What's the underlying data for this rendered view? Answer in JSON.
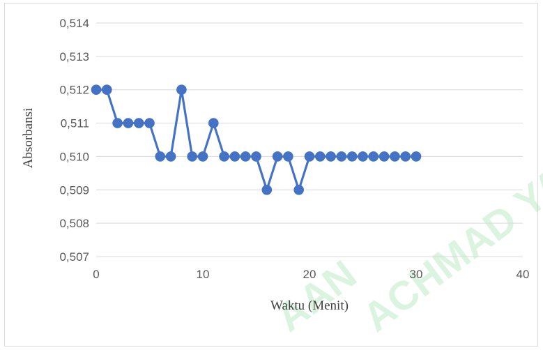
{
  "chart_data": {
    "type": "line",
    "title": "",
    "xlabel": "Waktu (Menit)",
    "ylabel": "Absorbansi",
    "xlim": [
      0,
      40
    ],
    "ylim": [
      0.507,
      0.514
    ],
    "x_ticks": [
      "0",
      "10",
      "20",
      "30",
      "40"
    ],
    "y_ticks": [
      "0,507",
      "0,508",
      "0,509",
      "0,510",
      "0,511",
      "0,512",
      "0,513",
      "0,514"
    ],
    "grid": "horizontal",
    "legend": "none",
    "series": [
      {
        "color": "#4472c4",
        "x": [
          0,
          1,
          2,
          3,
          4,
          5,
          6,
          7,
          8,
          9,
          10,
          11,
          12,
          13,
          14,
          15,
          16,
          17,
          18,
          19,
          20,
          21,
          22,
          23,
          24,
          25,
          26,
          27,
          28,
          29,
          30
        ],
        "y": [
          0.512,
          0.512,
          0.511,
          0.511,
          0.511,
          0.511,
          0.51,
          0.51,
          0.512,
          0.51,
          0.51,
          0.511,
          0.51,
          0.51,
          0.51,
          0.51,
          0.509,
          0.51,
          0.51,
          0.509,
          0.51,
          0.51,
          0.51,
          0.51,
          0.51,
          0.51,
          0.51,
          0.51,
          0.51,
          0.51,
          0.51
        ]
      }
    ]
  },
  "watermark": {
    "lines": [
      "AAN",
      "ACHMAD YA"
    ],
    "color": "#9be2a8"
  }
}
